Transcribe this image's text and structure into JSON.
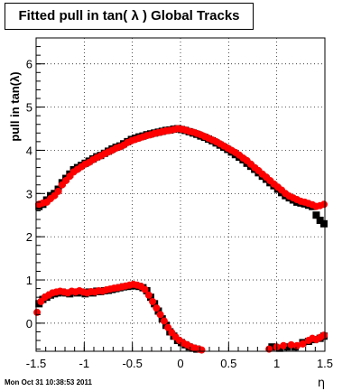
{
  "chart_data": {
    "type": "scatter",
    "title": "Fitted pull in tan( λ )  Global Tracks",
    "xlabel": "η",
    "ylabel": "pull in tan(λ)",
    "xlim": [
      -1.5,
      1.5
    ],
    "ylim": [
      -0.65,
      6.6
    ],
    "grid": true,
    "x_ticks": [
      -1.5,
      -1,
      -0.5,
      0,
      0.5,
      1,
      1.5
    ],
    "x_tick_labels": [
      "-1.5",
      "-1",
      "-0.5",
      "0",
      "0.5",
      "1",
      "1.5"
    ],
    "y_ticks": [
      0,
      1,
      2,
      3,
      4,
      5,
      6
    ],
    "y_tick_labels": [
      "0",
      "1",
      "2",
      "3",
      "4",
      "5",
      "6"
    ],
    "footer": "Mon Oct 31 10:38:53 2011",
    "colors": {
      "series_black": "#000000",
      "series_red": "#ff0000",
      "grid": "#000000"
    },
    "series": [
      {
        "marker": "square",
        "color": "#000000",
        "points": [
          [
            -1.47,
            2.7
          ],
          [
            -1.43,
            2.75
          ],
          [
            -1.39,
            2.85
          ],
          [
            -1.35,
            2.95
          ],
          [
            -1.31,
            3.0
          ],
          [
            -1.27,
            3.1
          ],
          [
            -1.23,
            3.25
          ],
          [
            -1.19,
            3.35
          ],
          [
            -1.15,
            3.45
          ],
          [
            -1.11,
            3.55
          ],
          [
            -1.07,
            3.6
          ],
          [
            -1.03,
            3.65
          ],
          [
            -0.99,
            3.7
          ],
          [
            -0.95,
            3.75
          ],
          [
            -0.91,
            3.8
          ],
          [
            -0.87,
            3.85
          ],
          [
            -0.83,
            3.88
          ],
          [
            -0.79,
            3.93
          ],
          [
            -0.75,
            3.98
          ],
          [
            -0.71,
            4.03
          ],
          [
            -0.67,
            4.07
          ],
          [
            -0.63,
            4.1
          ],
          [
            -0.59,
            4.15
          ],
          [
            -0.55,
            4.2
          ],
          [
            -0.51,
            4.25
          ],
          [
            -0.47,
            4.28
          ],
          [
            -0.43,
            4.31
          ],
          [
            -0.39,
            4.33
          ],
          [
            -0.35,
            4.36
          ],
          [
            -0.31,
            4.38
          ],
          [
            -0.27,
            4.4
          ],
          [
            -0.23,
            4.42
          ],
          [
            -0.19,
            4.44
          ],
          [
            -0.15,
            4.46
          ],
          [
            -0.11,
            4.47
          ],
          [
            -0.07,
            4.49
          ],
          [
            -0.03,
            4.5
          ],
          [
            0.01,
            4.48
          ],
          [
            0.05,
            4.46
          ],
          [
            0.09,
            4.43
          ],
          [
            0.13,
            4.4
          ],
          [
            0.17,
            4.37
          ],
          [
            0.21,
            4.33
          ],
          [
            0.25,
            4.3
          ],
          [
            0.29,
            4.26
          ],
          [
            0.33,
            4.22
          ],
          [
            0.37,
            4.17
          ],
          [
            0.41,
            4.12
          ],
          [
            0.45,
            4.07
          ],
          [
            0.49,
            4.02
          ],
          [
            0.53,
            3.96
          ],
          [
            0.57,
            3.9
          ],
          [
            0.61,
            3.84
          ],
          [
            0.65,
            3.78
          ],
          [
            0.69,
            3.7
          ],
          [
            0.73,
            3.63
          ],
          [
            0.77,
            3.56
          ],
          [
            0.81,
            3.48
          ],
          [
            0.85,
            3.4
          ],
          [
            0.89,
            3.33
          ],
          [
            0.93,
            3.25
          ],
          [
            0.97,
            3.18
          ],
          [
            1.01,
            3.1
          ],
          [
            1.05,
            3.02
          ],
          [
            1.09,
            2.95
          ],
          [
            1.13,
            2.9
          ],
          [
            1.17,
            2.85
          ],
          [
            1.21,
            2.8
          ],
          [
            1.25,
            2.78
          ],
          [
            1.29,
            2.76
          ],
          [
            1.33,
            2.73
          ],
          [
            1.37,
            2.7
          ],
          [
            1.41,
            2.5
          ],
          [
            1.45,
            2.38
          ],
          [
            1.49,
            2.3
          ],
          [
            -1.47,
            0.45
          ],
          [
            -1.43,
            0.55
          ],
          [
            -1.39,
            0.6
          ],
          [
            -1.35,
            0.65
          ],
          [
            -1.31,
            0.68
          ],
          [
            -1.27,
            0.7
          ],
          [
            -1.23,
            0.72
          ],
          [
            -1.19,
            0.7
          ],
          [
            -1.15,
            0.68
          ],
          [
            -1.11,
            0.72
          ],
          [
            -1.07,
            0.7
          ],
          [
            -1.03,
            0.72
          ],
          [
            -0.99,
            0.68
          ],
          [
            -0.95,
            0.72
          ],
          [
            -0.91,
            0.7
          ],
          [
            -0.87,
            0.74
          ],
          [
            -0.83,
            0.73
          ],
          [
            -0.79,
            0.75
          ],
          [
            -0.75,
            0.76
          ],
          [
            -0.71,
            0.78
          ],
          [
            -0.67,
            0.8
          ],
          [
            -0.63,
            0.82
          ],
          [
            -0.59,
            0.84
          ],
          [
            -0.55,
            0.85
          ],
          [
            -0.51,
            0.86
          ],
          [
            -0.47,
            0.87
          ],
          [
            -0.43,
            0.85
          ],
          [
            -0.39,
            0.82
          ],
          [
            -0.35,
            0.75
          ],
          [
            -0.31,
            0.6
          ],
          [
            -0.27,
            0.45
          ],
          [
            -0.23,
            0.28
          ],
          [
            -0.19,
            0.1
          ],
          [
            -0.15,
            -0.05
          ],
          [
            -0.11,
            -0.2
          ],
          [
            -0.07,
            -0.3
          ],
          [
            -0.03,
            -0.4
          ],
          [
            0.01,
            -0.45
          ],
          [
            0.05,
            -0.5
          ],
          [
            0.09,
            -0.55
          ],
          [
            0.13,
            -0.58
          ],
          [
            0.17,
            -0.6
          ],
          [
            0.95,
            -0.55
          ],
          [
            1.03,
            -0.58
          ],
          [
            1.11,
            -0.55
          ],
          [
            1.19,
            -0.55
          ],
          [
            1.27,
            -0.45
          ],
          [
            1.33,
            -0.42
          ],
          [
            1.39,
            -0.38
          ],
          [
            1.45,
            -0.35
          ],
          [
            1.49,
            -0.3
          ]
        ]
      },
      {
        "marker": "circle",
        "color": "#ff0000",
        "points": [
          [
            -1.47,
            2.75
          ],
          [
            -1.43,
            2.78
          ],
          [
            -1.39,
            2.8
          ],
          [
            -1.35,
            2.88
          ],
          [
            -1.31,
            2.95
          ],
          [
            -1.27,
            3.05
          ],
          [
            -1.23,
            3.2
          ],
          [
            -1.19,
            3.3
          ],
          [
            -1.15,
            3.4
          ],
          [
            -1.11,
            3.5
          ],
          [
            -1.07,
            3.56
          ],
          [
            -1.03,
            3.62
          ],
          [
            -0.99,
            3.68
          ],
          [
            -0.95,
            3.72
          ],
          [
            -0.91,
            3.78
          ],
          [
            -0.87,
            3.83
          ],
          [
            -0.83,
            3.87
          ],
          [
            -0.79,
            3.92
          ],
          [
            -0.75,
            3.96
          ],
          [
            -0.71,
            4.0
          ],
          [
            -0.67,
            4.05
          ],
          [
            -0.63,
            4.08
          ],
          [
            -0.59,
            4.12
          ],
          [
            -0.55,
            4.18
          ],
          [
            -0.51,
            4.22
          ],
          [
            -0.47,
            4.25
          ],
          [
            -0.43,
            4.28
          ],
          [
            -0.39,
            4.31
          ],
          [
            -0.35,
            4.34
          ],
          [
            -0.31,
            4.36
          ],
          [
            -0.27,
            4.39
          ],
          [
            -0.23,
            4.41
          ],
          [
            -0.19,
            4.43
          ],
          [
            -0.15,
            4.45
          ],
          [
            -0.11,
            4.46
          ],
          [
            -0.07,
            4.48
          ],
          [
            -0.03,
            4.5
          ],
          [
            0.01,
            4.49
          ],
          [
            0.05,
            4.47
          ],
          [
            0.09,
            4.44
          ],
          [
            0.13,
            4.42
          ],
          [
            0.17,
            4.39
          ],
          [
            0.21,
            4.36
          ],
          [
            0.25,
            4.32
          ],
          [
            0.29,
            4.28
          ],
          [
            0.33,
            4.24
          ],
          [
            0.37,
            4.2
          ],
          [
            0.41,
            4.15
          ],
          [
            0.45,
            4.1
          ],
          [
            0.49,
            4.05
          ],
          [
            0.53,
            4.0
          ],
          [
            0.57,
            3.95
          ],
          [
            0.61,
            3.89
          ],
          [
            0.65,
            3.82
          ],
          [
            0.69,
            3.76
          ],
          [
            0.73,
            3.68
          ],
          [
            0.77,
            3.6
          ],
          [
            0.81,
            3.53
          ],
          [
            0.85,
            3.45
          ],
          [
            0.89,
            3.38
          ],
          [
            0.93,
            3.3
          ],
          [
            0.97,
            3.22
          ],
          [
            1.01,
            3.15
          ],
          [
            1.05,
            3.08
          ],
          [
            1.09,
            3.0
          ],
          [
            1.13,
            2.94
          ],
          [
            1.17,
            2.9
          ],
          [
            1.21,
            2.86
          ],
          [
            1.25,
            2.82
          ],
          [
            1.29,
            2.8
          ],
          [
            1.33,
            2.77
          ],
          [
            1.37,
            2.74
          ],
          [
            1.41,
            2.7
          ],
          [
            1.45,
            2.72
          ],
          [
            1.49,
            2.75
          ],
          [
            -1.49,
            0.25
          ],
          [
            -1.45,
            0.5
          ],
          [
            -1.41,
            0.6
          ],
          [
            -1.37,
            0.65
          ],
          [
            -1.33,
            0.7
          ],
          [
            -1.29,
            0.72
          ],
          [
            -1.25,
            0.74
          ],
          [
            -1.21,
            0.72
          ],
          [
            -1.17,
            0.7
          ],
          [
            -1.13,
            0.74
          ],
          [
            -1.09,
            0.72
          ],
          [
            -1.05,
            0.75
          ],
          [
            -1.01,
            0.72
          ],
          [
            -0.97,
            0.7
          ],
          [
            -0.93,
            0.73
          ],
          [
            -0.89,
            0.72
          ],
          [
            -0.85,
            0.75
          ],
          [
            -0.81,
            0.74
          ],
          [
            -0.77,
            0.77
          ],
          [
            -0.73,
            0.79
          ],
          [
            -0.69,
            0.81
          ],
          [
            -0.65,
            0.82
          ],
          [
            -0.61,
            0.84
          ],
          [
            -0.57,
            0.86
          ],
          [
            -0.53,
            0.88
          ],
          [
            -0.49,
            0.9
          ],
          [
            -0.45,
            0.88
          ],
          [
            -0.41,
            0.85
          ],
          [
            -0.37,
            0.78
          ],
          [
            -0.33,
            0.65
          ],
          [
            -0.29,
            0.5
          ],
          [
            -0.25,
            0.35
          ],
          [
            -0.21,
            0.2
          ],
          [
            -0.17,
            0.05
          ],
          [
            -0.13,
            -0.1
          ],
          [
            -0.09,
            -0.22
          ],
          [
            -0.05,
            -0.32
          ],
          [
            -0.01,
            -0.4
          ],
          [
            0.03,
            -0.46
          ],
          [
            0.07,
            -0.5
          ],
          [
            0.11,
            -0.55
          ],
          [
            0.15,
            -0.58
          ],
          [
            0.19,
            -0.6
          ],
          [
            0.22,
            -0.62
          ],
          [
            0.92,
            -0.6
          ],
          [
            1.0,
            -0.55
          ],
          [
            1.07,
            -0.52
          ],
          [
            1.15,
            -0.5
          ],
          [
            1.21,
            -0.52
          ],
          [
            1.27,
            -0.48
          ],
          [
            1.33,
            -0.4
          ],
          [
            1.37,
            -0.35
          ],
          [
            1.41,
            -0.38
          ],
          [
            1.45,
            -0.33
          ],
          [
            1.49,
            -0.28
          ]
        ]
      }
    ]
  }
}
